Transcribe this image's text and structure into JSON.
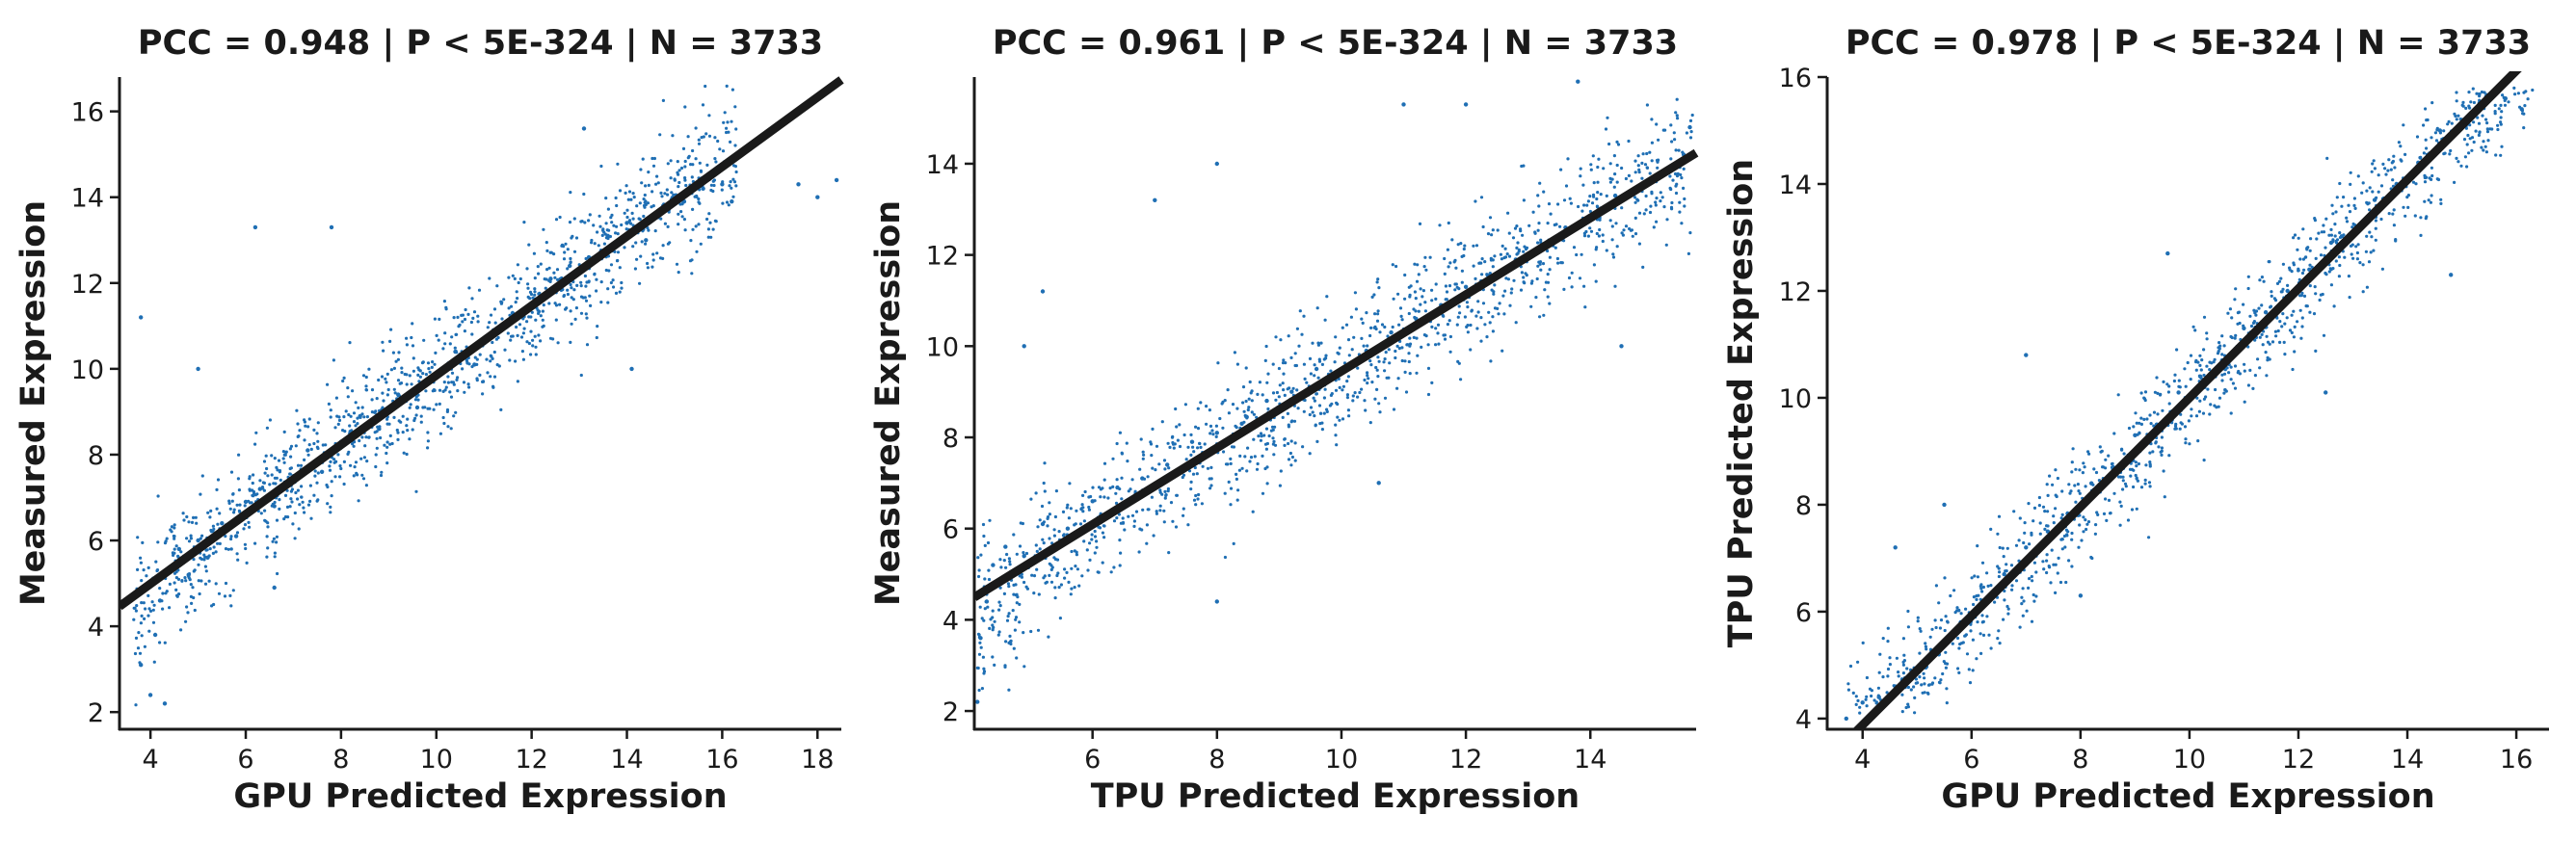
{
  "chart_data": [
    {
      "type": "scatter",
      "title": "PCC =  0.948 | P <  5E-324 | N = 3733",
      "xlabel": "GPU Predicted Expression",
      "ylabel": "Measured Expression",
      "xlim": [
        3.35,
        18.5
      ],
      "ylim": [
        1.6,
        16.8
      ],
      "xticks": [
        4,
        6,
        8,
        10,
        12,
        14,
        16,
        18
      ],
      "yticks": [
        2,
        4,
        6,
        8,
        10,
        12,
        14,
        16
      ],
      "fit_line": {
        "slope": 0.81,
        "intercept": 1.75
      },
      "point_color": "#1f6fb4",
      "line_color": "#1a1a1a",
      "n_points": 3733,
      "points": [
        [
          3.8,
          3.1
        ],
        [
          4.0,
          2.4
        ],
        [
          4.1,
          3.8
        ],
        [
          4.2,
          4.6
        ],
        [
          4.3,
          2.2
        ],
        [
          4.4,
          5.3
        ],
        [
          4.6,
          5.8
        ],
        [
          4.8,
          5.2
        ],
        [
          5.0,
          6.0
        ],
        [
          5.2,
          5.6
        ],
        [
          5.5,
          6.4
        ],
        [
          5.8,
          6.1
        ],
        [
          6.0,
          6.9
        ],
        [
          6.3,
          7.2
        ],
        [
          6.6,
          6.8
        ],
        [
          7.0,
          7.5
        ],
        [
          7.3,
          8.1
        ],
        [
          7.6,
          7.6
        ],
        [
          8.0,
          8.3
        ],
        [
          8.4,
          8.9
        ],
        [
          8.8,
          8.6
        ],
        [
          9.2,
          9.4
        ],
        [
          9.6,
          9.1
        ],
        [
          10.0,
          9.9
        ],
        [
          10.4,
          10.4
        ],
        [
          10.8,
          10.1
        ],
        [
          11.2,
          10.9
        ],
        [
          11.6,
          11.3
        ],
        [
          12.0,
          11.5
        ],
        [
          12.4,
          12.1
        ],
        [
          12.8,
          12.4
        ],
        [
          13.2,
          12.6
        ],
        [
          13.6,
          13.1
        ],
        [
          14.0,
          13.4
        ],
        [
          14.4,
          13.0
        ],
        [
          14.8,
          13.7
        ],
        [
          15.2,
          13.9
        ],
        [
          15.6,
          14.2
        ],
        [
          16.0,
          14.3
        ],
        [
          16.2,
          13.9
        ],
        [
          17.6,
          14.3
        ],
        [
          18.0,
          14.0
        ],
        [
          18.4,
          14.4
        ],
        [
          6.2,
          13.3
        ],
        [
          3.8,
          11.2
        ],
        [
          7.8,
          13.3
        ],
        [
          14.1,
          10.0
        ],
        [
          5.0,
          10.0
        ],
        [
          6.6,
          4.9
        ],
        [
          13.1,
          15.6
        ]
      ]
    },
    {
      "type": "scatter",
      "title": "PCC =  0.961 | P <  5E-324 | N = 3733",
      "xlabel": "TPU Predicted Expression",
      "ylabel": "Measured Expression",
      "xlim": [
        4.1,
        15.7
      ],
      "ylim": [
        1.6,
        15.9
      ],
      "xticks": [
        6,
        8,
        10,
        12,
        14
      ],
      "yticks": [
        2,
        4,
        6,
        8,
        10,
        12,
        14
      ],
      "fit_line": {
        "slope": 0.84,
        "intercept": 1.05
      },
      "point_color": "#1f6fb4",
      "line_color": "#1a1a1a",
      "n_points": 3733,
      "points": [
        [
          4.15,
          2.2
        ],
        [
          4.2,
          3.6
        ],
        [
          4.3,
          4.4
        ],
        [
          4.4,
          5.2
        ],
        [
          4.6,
          5.6
        ],
        [
          4.9,
          5.4
        ],
        [
          5.2,
          6.1
        ],
        [
          5.6,
          6.0
        ],
        [
          6.0,
          6.6
        ],
        [
          6.4,
          6.9
        ],
        [
          6.8,
          7.1
        ],
        [
          7.2,
          7.4
        ],
        [
          7.6,
          7.9
        ],
        [
          8.0,
          8.1
        ],
        [
          8.4,
          8.3
        ],
        [
          8.8,
          8.8
        ],
        [
          9.2,
          9.0
        ],
        [
          9.6,
          9.5
        ],
        [
          10.0,
          9.4
        ],
        [
          10.4,
          9.9
        ],
        [
          10.8,
          10.3
        ],
        [
          11.2,
          10.6
        ],
        [
          11.6,
          10.9
        ],
        [
          12.0,
          11.3
        ],
        [
          12.4,
          11.5
        ],
        [
          12.8,
          11.9
        ],
        [
          13.2,
          12.2
        ],
        [
          13.6,
          12.6
        ],
        [
          14.0,
          12.8
        ],
        [
          14.4,
          13.3
        ],
        [
          14.8,
          13.5
        ],
        [
          15.2,
          13.8
        ],
        [
          15.5,
          14.2
        ],
        [
          15.6,
          14.8
        ],
        [
          5.2,
          11.2
        ],
        [
          4.9,
          10.0
        ],
        [
          7.0,
          13.2
        ],
        [
          8.0,
          14.0
        ],
        [
          11.0,
          15.3
        ],
        [
          13.8,
          15.8
        ],
        [
          8.0,
          4.4
        ],
        [
          10.6,
          7.0
        ],
        [
          14.5,
          10.0
        ],
        [
          12.0,
          15.3
        ]
      ]
    },
    {
      "type": "scatter",
      "title": "PCC =  0.978 | P <  5E-324 | N = 3733",
      "xlabel": "GPU Predicted Expression",
      "ylabel": "TPU Predicted Expression",
      "xlim": [
        3.35,
        16.6
      ],
      "ylim": [
        3.8,
        16.0
      ],
      "xticks": [
        4,
        6,
        8,
        10,
        12,
        14,
        16
      ],
      "yticks": [
        4,
        6,
        8,
        10,
        12,
        14,
        16
      ],
      "fit_line": {
        "slope": 1.02,
        "intercept": -0.2
      },
      "point_color": "#1f6fb4",
      "line_color": "#1a1a1a",
      "n_points": 3733,
      "points": [
        [
          3.7,
          4.0
        ],
        [
          4.0,
          4.3
        ],
        [
          4.3,
          4.4
        ],
        [
          4.6,
          4.6
        ],
        [
          5.0,
          4.9
        ],
        [
          5.4,
          5.2
        ],
        [
          5.8,
          5.8
        ],
        [
          6.2,
          6.2
        ],
        [
          6.6,
          6.7
        ],
        [
          7.0,
          7.2
        ],
        [
          7.4,
          7.5
        ],
        [
          7.8,
          7.8
        ],
        [
          8.2,
          8.4
        ],
        [
          8.6,
          8.7
        ],
        [
          9.0,
          9.3
        ],
        [
          9.4,
          9.5
        ],
        [
          9.8,
          10.1
        ],
        [
          10.2,
          10.4
        ],
        [
          10.6,
          10.7
        ],
        [
          11.0,
          11.3
        ],
        [
          11.4,
          11.6
        ],
        [
          11.8,
          12.0
        ],
        [
          12.2,
          12.4
        ],
        [
          12.6,
          12.9
        ],
        [
          13.0,
          13.1
        ],
        [
          13.4,
          13.7
        ],
        [
          13.8,
          14.0
        ],
        [
          14.2,
          14.4
        ],
        [
          14.6,
          15.0
        ],
        [
          15.0,
          15.2
        ],
        [
          15.4,
          15.5
        ],
        [
          15.8,
          15.6
        ],
        [
          16.1,
          15.4
        ],
        [
          4.6,
          7.2
        ],
        [
          5.5,
          8.0
        ],
        [
          7.0,
          10.8
        ],
        [
          9.6,
          12.7
        ],
        [
          14.8,
          12.3
        ],
        [
          12.5,
          10.1
        ],
        [
          8.0,
          6.3
        ]
      ]
    }
  ]
}
